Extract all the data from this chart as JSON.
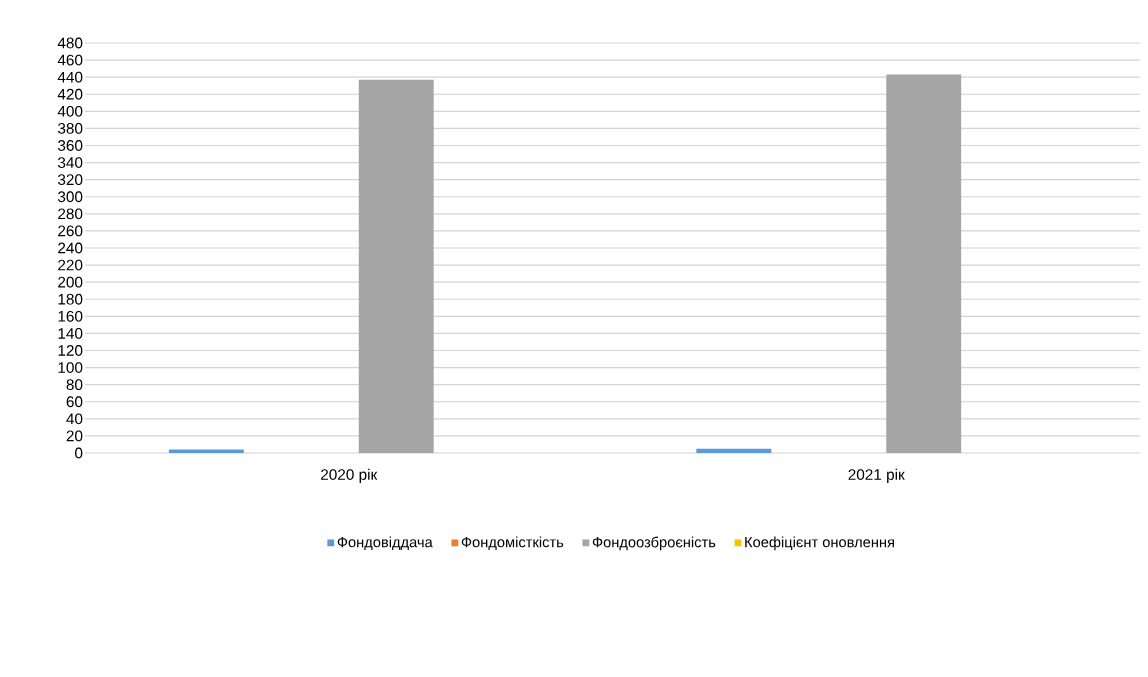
{
  "chart_data": {
    "type": "bar",
    "categories": [
      "2020 рік",
      "2021 рік"
    ],
    "series": [
      {
        "name": "Фондовіддача",
        "color": "#5b9bd5",
        "values": [
          4,
          5
        ]
      },
      {
        "name": "Фондомісткість",
        "color": "#ed7d31",
        "values": [
          null,
          null
        ]
      },
      {
        "name": "Фондоозброєність",
        "color": "#a5a5a5",
        "values": [
          437,
          443
        ]
      },
      {
        "name": "Коефіцієнт оновлення",
        "color": "#ffc000",
        "values": [
          null,
          null
        ]
      }
    ],
    "ylim": [
      0,
      480
    ],
    "yticks": [
      0,
      20,
      40,
      60,
      80,
      100,
      120,
      140,
      160,
      180,
      200,
      220,
      240,
      260,
      280,
      300,
      320,
      340,
      360,
      380,
      400,
      420,
      440,
      460,
      480
    ],
    "grid": "y",
    "legend": "bottom"
  }
}
